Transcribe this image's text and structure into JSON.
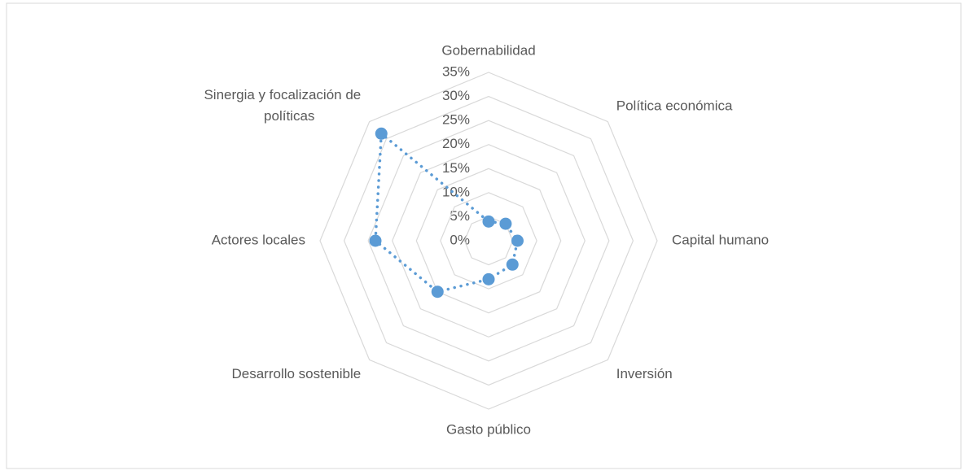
{
  "chart_data": {
    "type": "radar",
    "categories": [
      "Gobernabilidad",
      "Política económica",
      "Capital humano",
      "Inversión",
      "Gasto público",
      "Desarrollo sostenible",
      "Actores locales",
      "Sinergia y focalización de políticas"
    ],
    "series": [
      {
        "color": "#5b9bd5",
        "values": [
          4,
          5,
          6,
          7,
          8,
          15,
          23.5,
          31.5
        ]
      }
    ],
    "ylim": [
      0,
      35
    ],
    "yticks": [
      {
        "value": 0,
        "label": "0%"
      },
      {
        "value": 5,
        "label": "5%"
      },
      {
        "value": 10,
        "label": "10%"
      },
      {
        "value": 15,
        "label": "15%"
      },
      {
        "value": 20,
        "label": "20%"
      },
      {
        "value": 25,
        "label": "25%"
      },
      {
        "value": 30,
        "label": "30%"
      },
      {
        "value": 35,
        "label": "35%"
      }
    ],
    "grid": true
  }
}
